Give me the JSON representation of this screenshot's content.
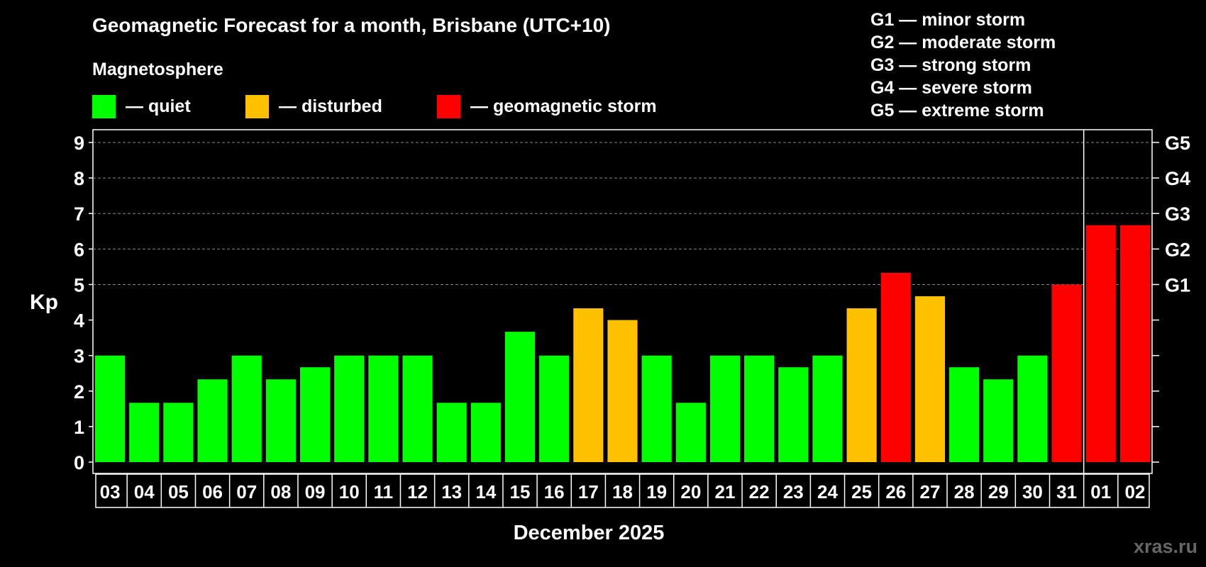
{
  "title": "Geomagnetic Forecast for a month, Brisbane (UTC+10)",
  "magnetosphere": {
    "title": "Magnetosphere",
    "legend": [
      {
        "label": "— quiet",
        "color": "#00ff00"
      },
      {
        "label": "— disturbed",
        "color": "#ffc000"
      },
      {
        "label": "— geomagnetic storm",
        "color": "#ff0000"
      }
    ]
  },
  "storm_scale": [
    "G1 — minor storm",
    "G2 — moderate storm",
    "G3 — strong storm",
    "G4 — severe storm",
    "G5 — extreme storm"
  ],
  "colors": {
    "quiet": "#00ff00",
    "disturbed": "#ffc000",
    "storm": "#ff0000",
    "background": "#000000",
    "axis": "#ffffff"
  },
  "watermark": "xras.ru",
  "chart_data": {
    "type": "bar",
    "title": "Geomagnetic Forecast for a month, Brisbane (UTC+10)",
    "xlabel": "December 2025",
    "ylabel": "Kp",
    "ylim": [
      0,
      9
    ],
    "yticks": [
      "0",
      "1",
      "2",
      "3",
      "4",
      "5",
      "6",
      "7",
      "8",
      "9"
    ],
    "right_axis_ticks": [
      {
        "kp": 5,
        "label": "G1"
      },
      {
        "kp": 6,
        "label": "G2"
      },
      {
        "kp": 7,
        "label": "G3"
      },
      {
        "kp": 8,
        "label": "G4"
      },
      {
        "kp": 9,
        "label": "G5"
      }
    ],
    "categories": [
      "03",
      "04",
      "05",
      "06",
      "07",
      "08",
      "09",
      "10",
      "11",
      "12",
      "13",
      "14",
      "15",
      "16",
      "17",
      "18",
      "19",
      "20",
      "21",
      "22",
      "23",
      "24",
      "25",
      "26",
      "27",
      "28",
      "29",
      "30",
      "31",
      "01",
      "02"
    ],
    "values": [
      3.0,
      1.67,
      1.67,
      2.33,
      3.0,
      2.33,
      2.67,
      3.0,
      3.0,
      3.0,
      1.67,
      1.67,
      3.67,
      3.0,
      4.33,
      4.0,
      3.0,
      1.67,
      3.0,
      3.0,
      2.67,
      3.0,
      4.33,
      5.33,
      4.67,
      2.67,
      2.33,
      3.0,
      5.0,
      6.67,
      6.67
    ],
    "levels": [
      "quiet",
      "quiet",
      "quiet",
      "quiet",
      "quiet",
      "quiet",
      "quiet",
      "quiet",
      "quiet",
      "quiet",
      "quiet",
      "quiet",
      "quiet",
      "quiet",
      "disturbed",
      "disturbed",
      "quiet",
      "quiet",
      "quiet",
      "quiet",
      "quiet",
      "quiet",
      "disturbed",
      "storm",
      "disturbed",
      "quiet",
      "quiet",
      "quiet",
      "storm",
      "storm",
      "storm"
    ],
    "grid": true,
    "month_boundary_after": "31"
  }
}
